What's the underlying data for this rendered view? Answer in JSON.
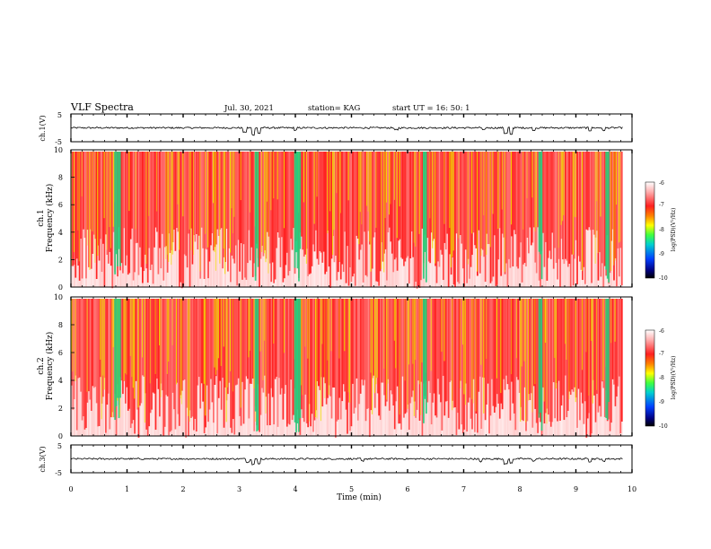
{
  "header": {
    "title": "VLF Spectra",
    "date": "Jul. 30, 2021",
    "station": "station= KAG",
    "start": "start  UT =   16: 50: 1"
  },
  "colors": {
    "background": "#ffffff",
    "axis": "#000000",
    "trace": "#000000",
    "spectrum_base": "#ff2020",
    "spectrum_band": "#f0e000",
    "spectrum_strong": "#20d080"
  },
  "colorbar": {
    "label": "log(PSD)(V²/Hz)",
    "ticks": [
      "-6",
      "-7",
      "-8",
      "-9",
      "-10"
    ],
    "range": [
      -10,
      -6
    ],
    "colormap": "white-red-yellow-green-cyan-blue-black"
  },
  "chart_data": [
    {
      "type": "line",
      "name": "ch1-waveform",
      "ylabel": "ch.1(V)",
      "yticks": [
        "5",
        "-5"
      ],
      "ylim": [
        -5,
        5
      ],
      "xlim": [
        0,
        10
      ],
      "baseline": 0,
      "dips": [
        {
          "x": 3.1,
          "depth": -1.5
        },
        {
          "x": 3.25,
          "depth": -2.5
        },
        {
          "x": 3.35,
          "depth": -2.0
        },
        {
          "x": 4.0,
          "depth": -0.8
        },
        {
          "x": 5.8,
          "depth": -0.7
        },
        {
          "x": 7.35,
          "depth": -0.8
        },
        {
          "x": 7.75,
          "depth": -2.0
        },
        {
          "x": 7.85,
          "depth": -2.2
        },
        {
          "x": 8.25,
          "depth": -0.8
        },
        {
          "x": 9.25,
          "depth": -1.0
        },
        {
          "x": 9.5,
          "depth": -1.0
        }
      ]
    },
    {
      "type": "heatmap",
      "name": "ch1-spectrogram",
      "ylabel": "ch.1\nFrequency (kHz)",
      "yticks": [
        "0",
        "2",
        "4",
        "6",
        "8",
        "10"
      ],
      "ylim": [
        0,
        10
      ],
      "xlim": [
        0,
        10
      ],
      "zlim": [
        -10,
        -6
      ],
      "strong_bands_min": [
        0.8,
        0.85,
        3.3,
        4.0,
        4.05,
        6.3,
        8.35,
        9.55
      ]
    },
    {
      "type": "heatmap",
      "name": "ch2-spectrogram",
      "ylabel": "ch.2\nFrequency (kHz)",
      "yticks": [
        "0",
        "2",
        "4",
        "6",
        "8",
        "10"
      ],
      "ylim": [
        0,
        10
      ],
      "xlim": [
        0,
        10
      ],
      "zlim": [
        -10,
        -6
      ],
      "strong_bands_min": [
        0.8,
        0.85,
        3.3,
        4.0,
        4.05,
        6.3,
        8.35,
        9.55
      ]
    },
    {
      "type": "line",
      "name": "ch3-waveform",
      "ylabel": "ch.3(V)",
      "yticks": [
        "5",
        "-5"
      ],
      "ylim": [
        -5,
        5
      ],
      "xlim": [
        0,
        10
      ],
      "baseline": 0,
      "dips": [
        {
          "x": 3.15,
          "depth": -1.2
        },
        {
          "x": 3.25,
          "depth": -2.0
        },
        {
          "x": 3.35,
          "depth": -1.8
        },
        {
          "x": 5.2,
          "depth": -0.8
        },
        {
          "x": 7.3,
          "depth": -1.0
        },
        {
          "x": 7.75,
          "depth": -1.8
        },
        {
          "x": 7.85,
          "depth": -1.5
        },
        {
          "x": 8.25,
          "depth": -0.8
        },
        {
          "x": 9.25,
          "depth": -1.0
        },
        {
          "x": 9.5,
          "depth": -0.8
        }
      ]
    }
  ],
  "xaxis": {
    "label": "Time (min)",
    "ticks": [
      "0",
      "1",
      "2",
      "3",
      "4",
      "5",
      "6",
      "7",
      "8",
      "9",
      "10"
    ],
    "range": [
      0,
      10
    ]
  }
}
